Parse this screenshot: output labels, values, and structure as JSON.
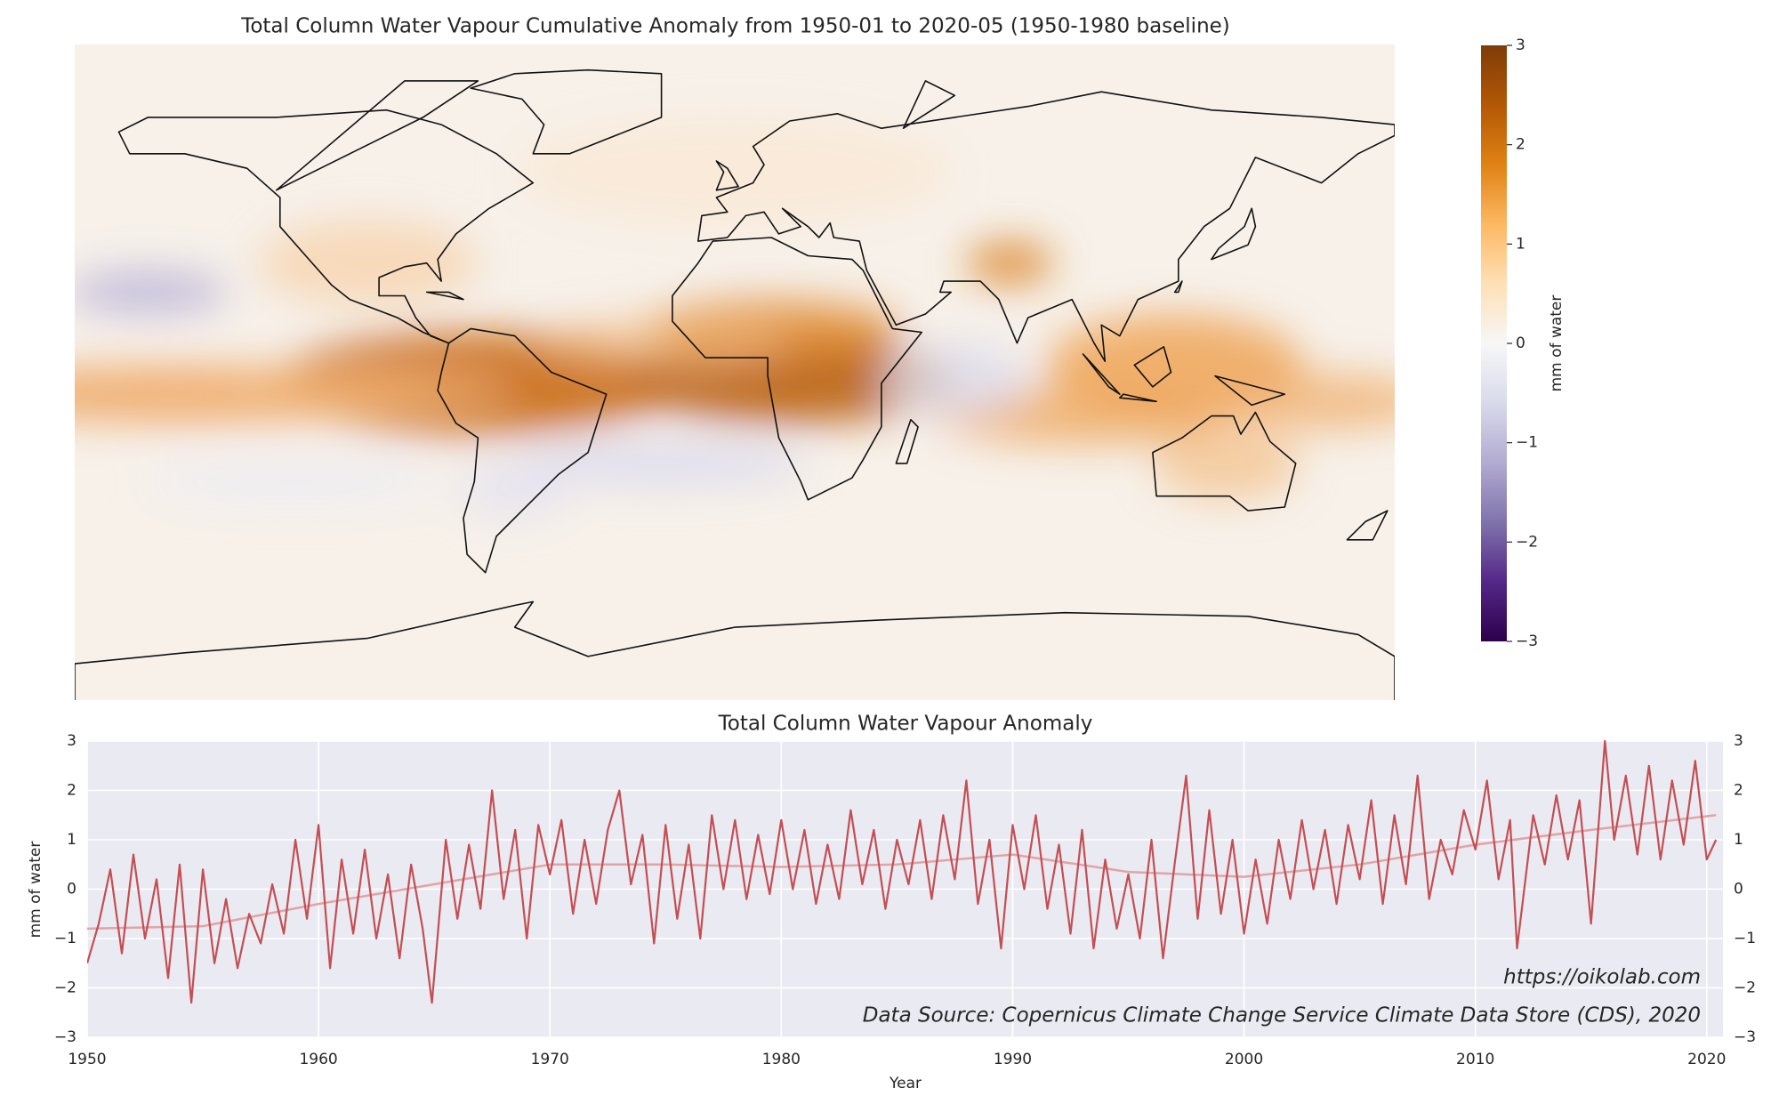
{
  "chart_data": [
    {
      "type": "map",
      "title": "Total Column Water Vapour Cumulative Anomaly from 1950-01 to 2020-05 (1950-1980 baseline)",
      "colorbar": {
        "label": "mm of water",
        "lim": [
          -3,
          3
        ],
        "ticks": [
          {
            "value": -3,
            "label": "−3"
          },
          {
            "value": -2,
            "label": "−2"
          },
          {
            "value": -1,
            "label": "−1"
          },
          0,
          1,
          2,
          3
        ],
        "colors": [
          "#2d004b",
          "#542788",
          "#8073ac",
          "#b2abd2",
          "#d8daeb",
          "#f7f7f7",
          "#fee0b6",
          "#fdb863",
          "#e08214",
          "#b35806",
          "#7f3b08"
        ]
      }
    },
    {
      "type": "line",
      "title": "Total Column Water Vapour Anomaly",
      "xlabel": "Year",
      "ylabel": "mm of water",
      "xlim": [
        1950,
        2020.7
      ],
      "xticks": [
        1950,
        1960,
        1970,
        1980,
        1990,
        2000,
        2010,
        2020
      ],
      "ylim": [
        -3,
        3
      ],
      "yticks": [
        {
          "value": -3,
          "label": "−3"
        },
        {
          "value": -2,
          "label": "−2"
        },
        {
          "value": -1,
          "label": "−1"
        },
        0,
        1,
        2,
        3
      ],
      "y2lim": [
        -3,
        3
      ],
      "y2ticks": [
        {
          "value": -3,
          "label": "−3"
        },
        {
          "value": -2,
          "label": "−2"
        },
        {
          "value": -1,
          "label": "−1"
        },
        0,
        1,
        2,
        3
      ],
      "grid": true,
      "annotations": [
        "https://oikolab.com",
        "Data Source: Copernicus Climate Change Service Climate Data Store (CDS), 2020"
      ],
      "series": [
        {
          "color": "#c44e52",
          "x": [
            1950.0,
            1950.5,
            1951.0,
            1951.5,
            1952.0,
            1952.5,
            1953.0,
            1953.5,
            1954.0,
            1954.5,
            1955.0,
            1955.5,
            1956.0,
            1956.5,
            1957.0,
            1957.5,
            1958.0,
            1958.5,
            1959.0,
            1959.5,
            1960.0,
            1960.5,
            1961.0,
            1961.5,
            1962.0,
            1962.5,
            1963.0,
            1963.5,
            1964.0,
            1964.5,
            1964.9,
            1965.5,
            1966.0,
            1966.5,
            1967.0,
            1967.5,
            1968.0,
            1968.5,
            1969.0,
            1969.5,
            1970.0,
            1970.5,
            1971.0,
            1971.5,
            1972.0,
            1972.5,
            1973.0,
            1973.5,
            1974.0,
            1974.5,
            1975.0,
            1975.5,
            1976.0,
            1976.5,
            1977.0,
            1977.5,
            1978.0,
            1978.5,
            1979.0,
            1979.5,
            1980.0,
            1980.5,
            1981.0,
            1981.5,
            1982.0,
            1982.5,
            1983.0,
            1983.5,
            1984.0,
            1984.5,
            1985.0,
            1985.5,
            1986.0,
            1986.5,
            1987.0,
            1987.5,
            1988.0,
            1988.5,
            1989.0,
            1989.5,
            1990.0,
            1990.5,
            1991.0,
            1991.5,
            1992.0,
            1992.5,
            1993.0,
            1993.5,
            1994.0,
            1994.5,
            1995.0,
            1995.5,
            1996.0,
            1996.5,
            1997.0,
            1997.5,
            1998.0,
            1998.5,
            1999.0,
            1999.5,
            2000.0,
            2000.5,
            2001.0,
            2001.5,
            2002.0,
            2002.5,
            2003.0,
            2003.5,
            2004.0,
            2004.5,
            2005.0,
            2005.5,
            2006.0,
            2006.5,
            2007.0,
            2007.5,
            2008.0,
            2008.5,
            2009.0,
            2009.5,
            2010.0,
            2010.5,
            2011.0,
            2011.5,
            2011.8,
            2012.5,
            2013.0,
            2013.5,
            2014.0,
            2014.5,
            2015.0,
            2015.6,
            2016.0,
            2016.5,
            2017.0,
            2017.5,
            2018.0,
            2018.5,
            2019.0,
            2019.5,
            2020.0,
            2020.4
          ],
          "values": [
            -1.5,
            -0.7,
            0.4,
            -1.3,
            0.7,
            -1.0,
            0.2,
            -1.8,
            0.5,
            -2.3,
            0.4,
            -1.5,
            -0.2,
            -1.6,
            -0.5,
            -1.1,
            0.1,
            -0.9,
            1.0,
            -0.6,
            1.3,
            -1.6,
            0.6,
            -0.9,
            0.8,
            -1.0,
            0.3,
            -1.4,
            0.5,
            -0.8,
            -2.3,
            1.0,
            -0.6,
            0.9,
            -0.4,
            2.0,
            -0.2,
            1.2,
            -1.0,
            1.3,
            0.3,
            1.4,
            -0.5,
            1.0,
            -0.3,
            1.2,
            2.0,
            0.1,
            1.1,
            -1.1,
            1.3,
            -0.6,
            0.9,
            -1.0,
            1.5,
            0.0,
            1.4,
            -0.2,
            1.1,
            -0.1,
            1.4,
            0.0,
            1.2,
            -0.3,
            0.9,
            -0.2,
            1.6,
            0.1,
            1.2,
            -0.4,
            1.0,
            0.1,
            1.4,
            -0.2,
            1.5,
            0.2,
            2.2,
            -0.3,
            1.0,
            -1.2,
            1.3,
            0.0,
            1.5,
            -0.4,
            0.9,
            -0.9,
            1.2,
            -1.2,
            0.6,
            -0.8,
            0.3,
            -1.0,
            1.0,
            -1.4,
            0.5,
            2.3,
            -0.6,
            1.6,
            -0.5,
            1.0,
            -0.9,
            0.6,
            -0.7,
            1.0,
            -0.2,
            1.4,
            0.0,
            1.2,
            -0.3,
            1.3,
            0.2,
            1.8,
            -0.3,
            1.5,
            0.1,
            2.3,
            -0.2,
            1.0,
            0.3,
            1.6,
            0.8,
            2.2,
            0.2,
            1.4,
            -1.2,
            1.5,
            0.5,
            1.9,
            0.6,
            1.8,
            -0.7,
            3.0,
            1.0,
            2.3,
            0.7,
            2.5,
            0.6,
            2.2,
            0.9,
            2.6,
            0.6,
            1.0
          ]
        },
        {
          "color": "#e3a3a5",
          "x": [
            1950,
            1955,
            1960,
            1965,
            1970,
            1975,
            1980,
            1985,
            1990,
            1995,
            2000,
            2005,
            2010,
            2015,
            2020.4
          ],
          "values": [
            -0.8,
            -0.75,
            -0.3,
            0.1,
            0.5,
            0.5,
            0.45,
            0.5,
            0.7,
            0.35,
            0.25,
            0.5,
            0.9,
            1.2,
            1.5
          ]
        }
      ]
    }
  ]
}
